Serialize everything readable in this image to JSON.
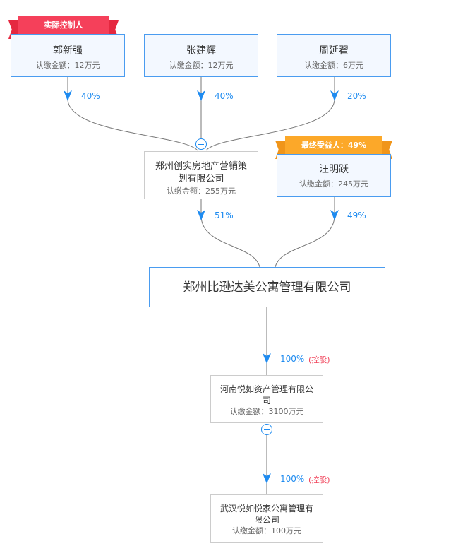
{
  "shareholders": [
    {
      "name": "郭新强",
      "amount": "认缴金额：12万元",
      "percent": "40%",
      "badge": "实际控制人"
    },
    {
      "name": "张建辉",
      "amount": "认缴金额：12万元",
      "percent": "40%"
    },
    {
      "name": "周延翟",
      "amount": "认缴金额：6万元",
      "percent": "20%"
    }
  ],
  "intermediate": {
    "name": "郑州创实房地产营销策划有限公司",
    "amount": "认缴金额：255万元",
    "percent": "51%"
  },
  "beneficiary": {
    "name": "汪明跃",
    "amount": "认缴金额：245万元",
    "percent": "49%",
    "badge": "最终受益人：49%"
  },
  "target": {
    "name": "郑州比逊达美公寓管理有限公司"
  },
  "subsidiaries": [
    {
      "name": "河南悦如资产管理有限公司",
      "amount": "认缴金额：3100万元",
      "percent": "100%",
      "control": "(控股)"
    },
    {
      "name": "武汉悦如悦家公寓管理有限公司",
      "amount": "认缴金额：100万元",
      "percent": "100%",
      "control": "(控股)"
    }
  ],
  "colors": {
    "accent": "#1e8bf0",
    "controller_badge": "#f5405a",
    "beneficiary_badge": "#fca829",
    "control_text": "#f0435a"
  }
}
